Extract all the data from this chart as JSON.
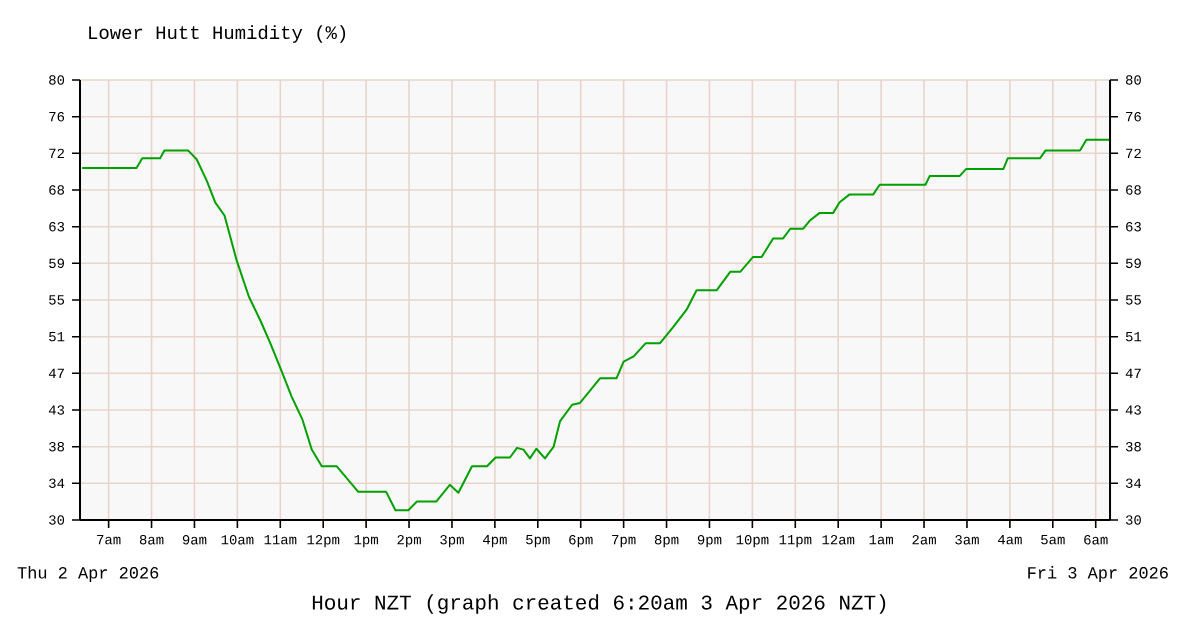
{
  "chart_data": {
    "type": "line",
    "title": "Lower Hutt Humidity (%)",
    "xlabel": "Hour NZT (graph created 6:20am 3 Apr 2026 NZT)",
    "annotations": [
      "Thu 2 Apr 2026",
      "Fri 3 Apr 2026"
    ],
    "x": [
      "2026-04-02T06:23",
      "2026-04-02T07:39",
      "2026-04-02T07:47",
      "2026-04-02T08:12",
      "2026-04-02T08:18",
      "2026-04-02T08:51",
      "2026-04-02T09:03",
      "2026-04-02T09:17",
      "2026-04-02T09:29",
      "2026-04-02T09:42",
      "2026-04-02T09:59",
      "2026-04-02T10:16",
      "2026-04-02T10:32",
      "2026-04-02T10:46",
      "2026-04-02T11:02",
      "2026-04-02T11:16",
      "2026-04-02T11:31",
      "2026-04-02T11:44",
      "2026-04-02T11:58",
      "2026-04-02T12:19",
      "2026-04-02T12:49",
      "2026-04-02T13:28",
      "2026-04-02T13:41",
      "2026-04-02T13:59",
      "2026-04-02T14:11",
      "2026-04-02T14:38",
      "2026-04-02T14:57",
      "2026-04-02T15:09",
      "2026-04-02T15:28",
      "2026-04-02T15:49",
      "2026-04-02T16:01",
      "2026-04-02T16:21",
      "2026-04-02T16:31",
      "2026-04-02T16:40",
      "2026-04-02T16:49",
      "2026-04-02T16:58",
      "2026-04-02T17:10",
      "2026-04-02T17:22",
      "2026-04-02T17:31",
      "2026-04-02T17:48",
      "2026-04-02T17:59",
      "2026-04-02T18:27",
      "2026-04-02T18:50",
      "2026-04-02T19:00",
      "2026-04-02T19:14",
      "2026-04-02T19:31",
      "2026-04-02T19:51",
      "2026-04-02T20:10",
      "2026-04-02T20:28",
      "2026-04-02T20:42",
      "2026-04-02T21:10",
      "2026-04-02T21:29",
      "2026-04-02T21:43",
      "2026-04-02T22:01",
      "2026-04-02T22:13",
      "2026-04-02T22:29",
      "2026-04-02T22:43",
      "2026-04-02T22:53",
      "2026-04-02T23:11",
      "2026-04-02T23:20",
      "2026-04-02T23:34",
      "2026-04-02T23:53",
      "2026-04-03T00:02",
      "2026-04-03T00:16",
      "2026-04-03T00:49",
      "2026-04-03T00:58",
      "2026-04-03T02:02",
      "2026-04-03T02:08",
      "2026-04-03T02:50",
      "2026-04-03T02:59",
      "2026-04-03T03:51",
      "2026-04-03T03:57",
      "2026-04-03T04:42",
      "2026-04-03T04:50",
      "2026-04-03T05:38",
      "2026-04-03T05:47",
      "2026-04-03T06:20"
    ],
    "series": [
      {
        "color": "#00a000",
        "values": [
          70,
          70,
          71.1,
          71.1,
          72,
          72,
          71,
          68.6,
          66.1,
          64.6,
          59.5,
          55.4,
          52.7,
          50.1,
          46.9,
          44.0,
          41.4,
          38.0,
          36.1,
          36.1,
          33.2,
          33.2,
          31.1,
          31.1,
          32.1,
          32.1,
          34.0,
          33.1,
          36.1,
          36.1,
          37.1,
          37.1,
          38.2,
          38.0,
          37.0,
          38.1,
          37.0,
          38.3,
          41.2,
          43.1,
          43.3,
          46.1,
          46.1,
          48.0,
          48.6,
          50.1,
          50.1,
          52.0,
          53.9,
          56.1,
          56.1,
          58.2,
          58.2,
          59.9,
          59.9,
          62.0,
          62.0,
          63.1,
          63.1,
          64.0,
          64.9,
          64.9,
          66.1,
          67.0,
          67.0,
          68.1,
          68.1,
          69.1,
          69.1,
          69.9,
          69.9,
          71.1,
          71.1,
          72.0,
          72.0,
          73.2,
          73.2
        ]
      }
    ],
    "xlim": [
      "2026-04-02T06:20",
      "2026-04-03T06:20"
    ],
    "xticks": [
      {
        "value": "2026-04-02T07:00",
        "label": "7am"
      },
      {
        "value": "2026-04-02T08:00",
        "label": "8am"
      },
      {
        "value": "2026-04-02T09:00",
        "label": "9am"
      },
      {
        "value": "2026-04-02T10:00",
        "label": "10am"
      },
      {
        "value": "2026-04-02T11:00",
        "label": "11am"
      },
      {
        "value": "2026-04-02T12:00",
        "label": "12pm"
      },
      {
        "value": "2026-04-02T13:00",
        "label": "1pm"
      },
      {
        "value": "2026-04-02T14:00",
        "label": "2pm"
      },
      {
        "value": "2026-04-02T15:00",
        "label": "3pm"
      },
      {
        "value": "2026-04-02T16:00",
        "label": "4pm"
      },
      {
        "value": "2026-04-02T17:00",
        "label": "5pm"
      },
      {
        "value": "2026-04-02T18:00",
        "label": "6pm"
      },
      {
        "value": "2026-04-02T19:00",
        "label": "7pm"
      },
      {
        "value": "2026-04-02T20:00",
        "label": "8pm"
      },
      {
        "value": "2026-04-02T21:00",
        "label": "9pm"
      },
      {
        "value": "2026-04-02T22:00",
        "label": "10pm"
      },
      {
        "value": "2026-04-02T23:00",
        "label": "11pm"
      },
      {
        "value": "2026-04-03T00:00",
        "label": "12am"
      },
      {
        "value": "2026-04-03T01:00",
        "label": "1am"
      },
      {
        "value": "2026-04-03T02:00",
        "label": "2am"
      },
      {
        "value": "2026-04-03T03:00",
        "label": "3am"
      },
      {
        "value": "2026-04-03T04:00",
        "label": "4am"
      },
      {
        "value": "2026-04-03T05:00",
        "label": "5am"
      },
      {
        "value": "2026-04-03T06:00",
        "label": "6am"
      }
    ],
    "ylim": [
      30,
      80
    ],
    "yticks": [
      30,
      {
        "value": 34.17,
        "label": "34"
      },
      {
        "value": 38.33,
        "label": "38"
      },
      {
        "value": 42.5,
        "label": "43"
      },
      {
        "value": 46.67,
        "label": "47"
      },
      {
        "value": 50.83,
        "label": "51"
      },
      55,
      {
        "value": 59.17,
        "label": "59"
      },
      {
        "value": 63.33,
        "label": "63"
      },
      {
        "value": 67.5,
        "label": "68"
      },
      {
        "value": 71.67,
        "label": "72"
      },
      {
        "value": 75.83,
        "label": "76"
      },
      80
    ],
    "y2lim": [
      30,
      80
    ],
    "y2ticks": [
      30,
      {
        "value": 34.17,
        "label": "34"
      },
      {
        "value": 38.33,
        "label": "38"
      },
      {
        "value": 42.5,
        "label": "43"
      },
      {
        "value": 46.67,
        "label": "47"
      },
      {
        "value": 50.83,
        "label": "51"
      },
      55,
      {
        "value": 59.17,
        "label": "59"
      },
      {
        "value": 63.33,
        "label": "63"
      },
      {
        "value": 67.5,
        "label": "68"
      },
      {
        "value": 71.67,
        "label": "72"
      },
      {
        "value": 75.83,
        "label": "76"
      },
      80
    ],
    "grid": true
  }
}
